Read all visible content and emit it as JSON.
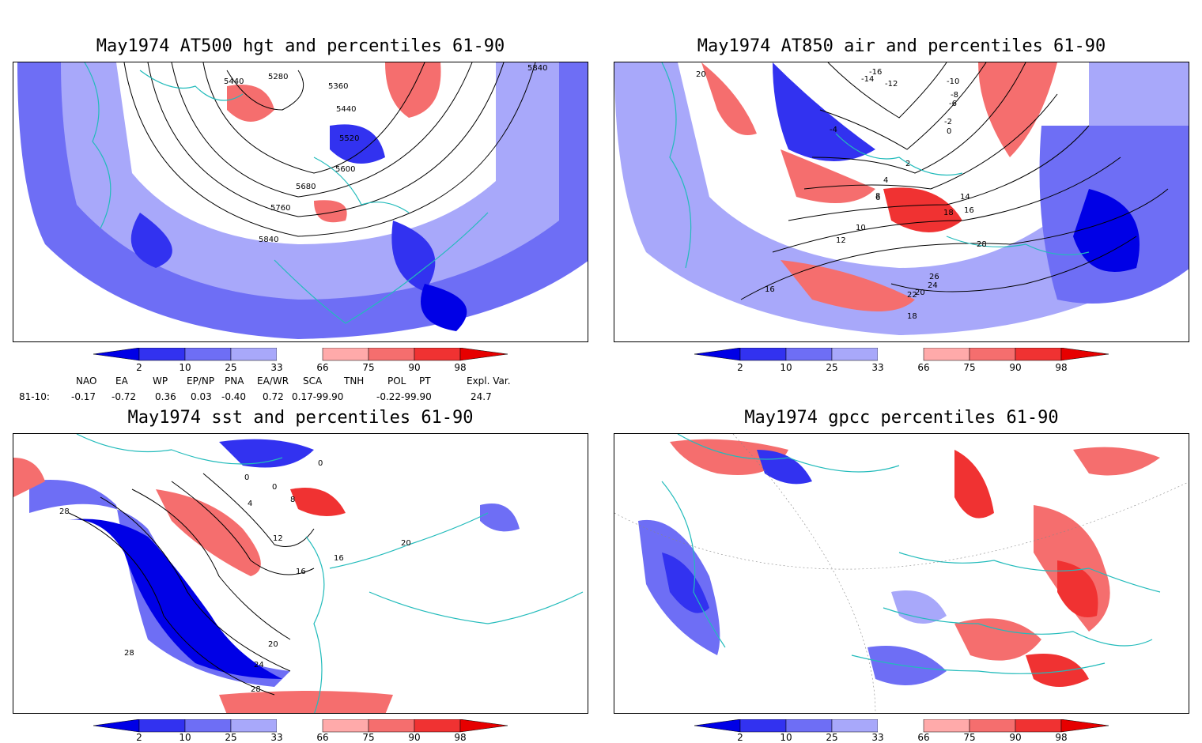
{
  "panels": [
    {
      "title": "May1974 AT500 hgt and percentiles 61-90",
      "contour_labels": [
        "5840",
        "5440",
        "5280",
        "5360",
        "5440",
        "5520",
        "5600",
        "5680",
        "5760",
        "5840"
      ]
    },
    {
      "title": "May1974 AT850 air and percentiles 61-90",
      "contour_labels": [
        "20",
        "-16",
        "-14",
        "-12",
        "-10",
        "-8",
        "-6",
        "-4",
        "-2",
        "0",
        "2",
        "4",
        "6",
        "8",
        "10",
        "12",
        "14",
        "16",
        "18",
        "20",
        "22",
        "24",
        "26",
        "28",
        "18",
        "16"
      ]
    },
    {
      "title": "May1974 sst and percentiles 61-90",
      "contour_labels": [
        "0",
        "0",
        "0",
        "4",
        "8",
        "12",
        "16",
        "16",
        "20",
        "20",
        "24",
        "28",
        "28",
        "28"
      ]
    },
    {
      "title": "May1974 gpcc percentiles 61-90",
      "contour_labels": []
    }
  ],
  "colorbar": {
    "ticks": [
      "2",
      "10",
      "25",
      "33",
      "66",
      "75",
      "90",
      "98"
    ],
    "colors": {
      "b1": "#0000e6",
      "b2": "#3232f0",
      "b3": "#6e6ef5",
      "b4": "#a8a8fa",
      "w": "#ffffff",
      "r1": "#ffaaaa",
      "r2": "#f56e6e",
      "r3": "#f03232",
      "r4": "#e60000"
    }
  },
  "indices": {
    "headers": [
      "NAO",
      "EA",
      "WP",
      "EP/NP",
      "PNA",
      "EA/WR",
      "SCA",
      "TNH",
      "POL",
      "PT",
      "Expl. Var."
    ],
    "row_label": "81-10:",
    "values": [
      "-0.17",
      "-0.72",
      "0.36",
      "0.03",
      "-0.40",
      "0.72",
      "0.17-99.90",
      "-0.22-99.90",
      "24.7"
    ]
  }
}
